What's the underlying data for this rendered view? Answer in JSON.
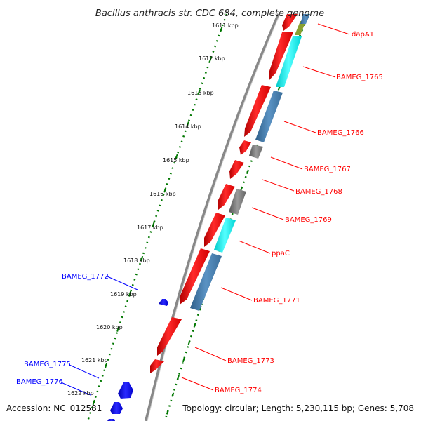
{
  "title": "Bacillus anthracis str. CDC 684, complete genome",
  "accession": "Accession: NC_012581",
  "topology": "Topology: circular; Length: 5,230,115 bp; Genes: 5,708",
  "ticks": [
    "1611 kbp",
    "1612 kbp",
    "1613 kbp",
    "1614 kbp",
    "1615 kbp",
    "1616 kbp",
    "1617 kbp",
    "1618 kbp",
    "1619 kbp",
    "1620 kbp",
    "1621 kbp",
    "1622 kbp"
  ],
  "colors": {
    "forward_gene": "#ff0000",
    "reverse_gene": "#0000ff",
    "tick_line": "#007700",
    "cyan_feature": "#00e5e5",
    "steelblue_feature": "#4682b4",
    "gray_feature": "#777777",
    "olive_feature": "#8aa030",
    "backbone": "#888888"
  },
  "forward_labels": [
    "dapA1",
    "BAMEG_1765",
    "BAMEG_1766",
    "BAMEG_1767",
    "BAMEG_1768",
    "BAMEG_1769",
    "ppaC",
    "BAMEG_1771",
    "BAMEG_1773",
    "BAMEG_1774"
  ],
  "reverse_labels": [
    "BAMEG_1772",
    "BAMEG_1775",
    "BAMEG_1776"
  ]
}
